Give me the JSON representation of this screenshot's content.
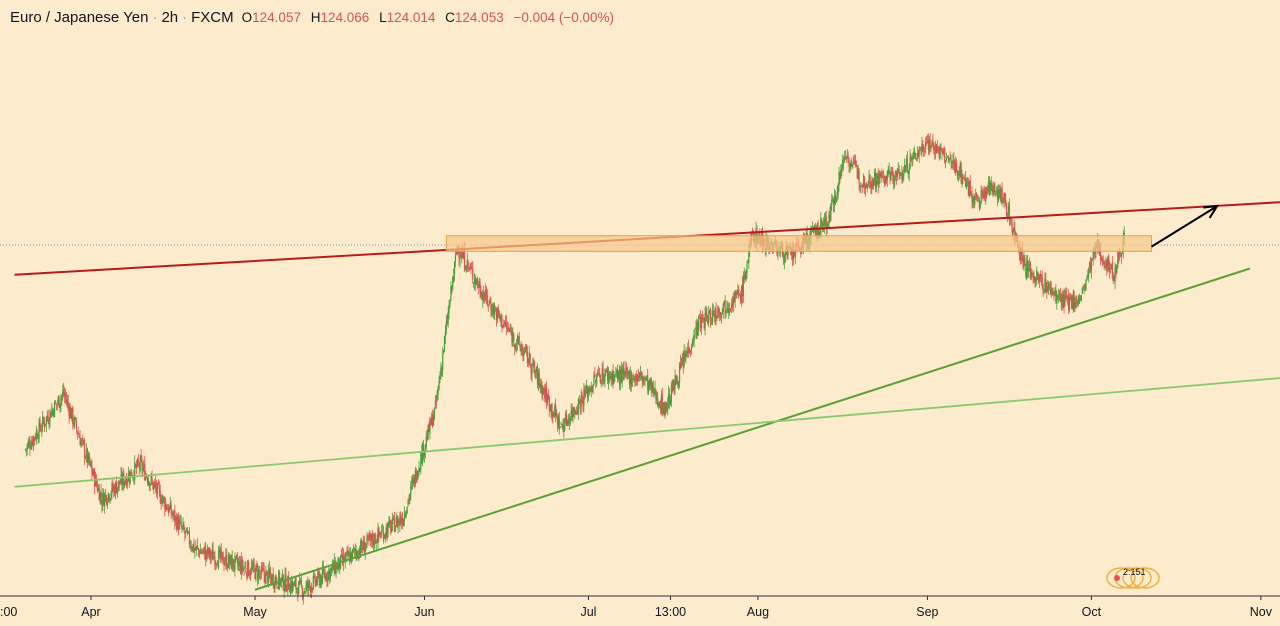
{
  "header": {
    "symbol": "Euro / Japanese Yen",
    "interval": "2h",
    "exchange": "FXCM",
    "o_label": "O",
    "o_value": "124.057",
    "h_label": "H",
    "h_value": "124.066",
    "l_label": "L",
    "l_value": "124.014",
    "c_label": "C",
    "c_value": "124.053",
    "change": "−0.004 (−0.00%)"
  },
  "watermark": {
    "text": "2:151"
  },
  "colors": {
    "background": "#fcebcc",
    "up_candle": "#4a9e3a",
    "down_candle": "#d9534f",
    "resistance_line": "#b71c1c",
    "support_line": "#5aa03a",
    "long_support_line": "#8cc870",
    "zone_fill": "#f7c98a",
    "zone_border": "#e0a050",
    "price_line": "#6b8fbf",
    "arrow": "#000000"
  },
  "chart_data": {
    "type": "candlestick",
    "title": "Euro / Japanese Yen · 2h · FXCM",
    "x_tick_labels": [
      ":00",
      "Apr",
      "May",
      "Jun",
      "Jul",
      "13:00",
      "Aug",
      "Sep",
      "Oct",
      "Nov"
    ],
    "last_close": 124.053,
    "y_axis_labels": "not visible",
    "trend_path_markers": [
      {
        "date": "Mar 20",
        "level": 117.5
      },
      {
        "date": "Mar 27",
        "level": 119.3
      },
      {
        "date": "Apr 3",
        "level": 115.9
      },
      {
        "date": "Apr 10",
        "level": 117.0
      },
      {
        "date": "Apr 20",
        "level": 114.3
      },
      {
        "date": "May 10",
        "level": 113.0
      },
      {
        "date": "May 28",
        "level": 115.3
      },
      {
        "date": "Jun 3",
        "level": 118.8
      },
      {
        "date": "Jun 7",
        "level": 124.0
      },
      {
        "date": "Jun 12",
        "level": 122.4
      },
      {
        "date": "Jun 20",
        "level": 120.4
      },
      {
        "date": "Jun 26",
        "level": 118.2
      },
      {
        "date": "Jul 3",
        "level": 119.9
      },
      {
        "date": "Jul 11",
        "level": 119.8
      },
      {
        "date": "Jul 15",
        "level": 118.8
      },
      {
        "date": "Jul 21",
        "level": 121.5
      },
      {
        "date": "Jul 29",
        "level": 122.5
      },
      {
        "date": "Jul 31",
        "level": 124.4
      },
      {
        "date": "Aug 7",
        "level": 123.7
      },
      {
        "date": "Aug 14",
        "level": 124.9
      },
      {
        "date": "Aug 17",
        "level": 127.0
      },
      {
        "date": "Aug 20",
        "level": 126.1
      },
      {
        "date": "Aug 27",
        "level": 126.3
      },
      {
        "date": "Sep 1",
        "level": 127.4
      },
      {
        "date": "Sep 7",
        "level": 126.4
      },
      {
        "date": "Sep 10",
        "level": 125.4
      },
      {
        "date": "Sep 13",
        "level": 126.0
      },
      {
        "date": "Sep 15",
        "level": 125.5
      },
      {
        "date": "Sep 19",
        "level": 123.3
      },
      {
        "date": "Sep 26",
        "level": 122.2
      },
      {
        "date": "Sep 29",
        "level": 122.3
      },
      {
        "date": "Oct 2",
        "level": 124.0
      },
      {
        "date": "Oct 5",
        "level": 123.1
      },
      {
        "date": "Oct 8",
        "level": 124.9
      },
      {
        "date": "Oct 10",
        "level": 124.05
      }
    ],
    "annotations": [
      {
        "type": "resistance trendline",
        "color": "dark red",
        "from": {
          "date": "Mar 18",
          "level": 123.1
        },
        "to": {
          "date": "Nov 12",
          "level": 125.5
        }
      },
      {
        "type": "support trendline",
        "color": "green",
        "from": {
          "date": "May 1",
          "level": 113.0
        },
        "to": {
          "date": "Oct 30",
          "level": 123.3
        }
      },
      {
        "type": "long support trendline",
        "color": "light green",
        "from": {
          "date": "Mar 18",
          "level": 116.3
        },
        "to": {
          "date": "Nov 12",
          "level": 119.9
        }
      },
      {
        "type": "horizontal zone",
        "color": "orange",
        "from_date": "Jun 5",
        "to_date": "Oct 12",
        "top": 124.35,
        "bottom": 123.85
      },
      {
        "type": "arrow",
        "direction": "up",
        "from": {
          "date": "Oct 12",
          "level": 124.0
        },
        "to": {
          "date": "Oct 24",
          "level": 125.3
        }
      }
    ]
  }
}
